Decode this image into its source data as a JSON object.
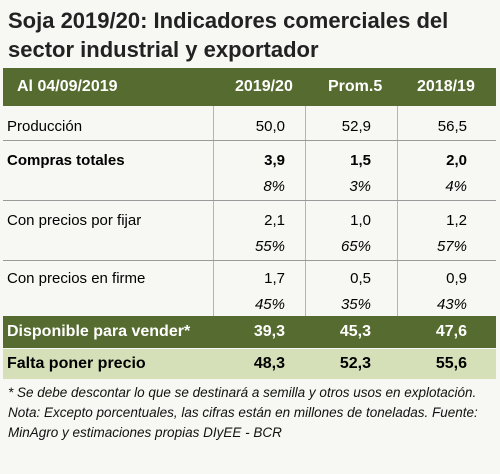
{
  "title": "Soja 2019/20: Indicadores comerciales del sector industrial y exportador",
  "colors": {
    "header_bg": "#556b2f",
    "light_band": "#d6e0b8"
  },
  "header": {
    "date_label": "Al 04/09/2019",
    "col1": "2019/20",
    "col2": "Prom.5",
    "col3": "2018/19"
  },
  "rows": {
    "produccion": {
      "label": "Producción",
      "v1": "50,0",
      "v2": "52,9",
      "v3": "56,5"
    },
    "compras": {
      "label": "Compras totales",
      "v1": "3,9",
      "v2": "1,5",
      "v3": "2,0",
      "p1": "8%",
      "p2": "3%",
      "p3": "4%"
    },
    "por_fijar": {
      "label": "Con precios por fijar",
      "v1": "2,1",
      "v2": "1,0",
      "v3": "1,2",
      "p1": "55%",
      "p2": "65%",
      "p3": "57%"
    },
    "en_firme": {
      "label": "Con precios en firme",
      "v1": "1,7",
      "v2": "0,5",
      "v3": "0,9",
      "p1": "45%",
      "p2": "35%",
      "p3": "43%"
    }
  },
  "disponible": {
    "label": "Disponible para vender*",
    "v1": "39,3",
    "v2": "45,3",
    "v3": "47,6"
  },
  "falta": {
    "label": "Falta poner precio",
    "v1": "48,3",
    "v2": "52,3",
    "v3": "55,6"
  },
  "note": "* Se debe descontar lo que se destinará a semilla y otros usos en explotación. Nota: Excepto porcentuales, las cifras están en millones de toneladas. Fuente: MinAgro y estimaciones propias DIyEE - BCR"
}
